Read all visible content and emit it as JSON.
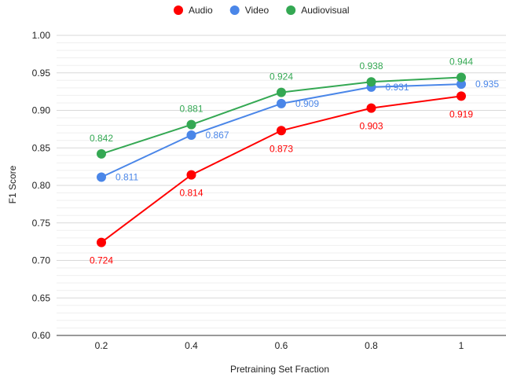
{
  "chart_data": {
    "type": "line",
    "title": "",
    "xlabel": "Pretraining Set Fraction",
    "ylabel": "F1 Score",
    "x": [
      0.2,
      0.4,
      0.6,
      0.8,
      1
    ],
    "x_tick_labels": [
      "0.2",
      "0.4",
      "0.6",
      "0.8",
      "1"
    ],
    "ylim": [
      0.6,
      1.0
    ],
    "y_ticks": [
      0.6,
      0.65,
      0.7,
      0.75,
      0.8,
      0.85,
      0.9,
      0.95,
      1.0
    ],
    "y_tick_labels": [
      "0.60",
      "0.65",
      "0.70",
      "0.75",
      "0.80",
      "0.85",
      "0.90",
      "0.95",
      "1.00"
    ],
    "grid": true,
    "minor_grid": true,
    "legend_position": "top-center",
    "series": [
      {
        "name": "Audio",
        "color": "#ff0000",
        "values": [
          0.724,
          0.814,
          0.873,
          0.903,
          0.919
        ],
        "labels": [
          "0.724",
          "0.814",
          "0.873",
          "0.903",
          "0.919"
        ],
        "label_placement": "below"
      },
      {
        "name": "Video",
        "color": "#4a86e8",
        "values": [
          0.811,
          0.867,
          0.909,
          0.931,
          0.935
        ],
        "labels": [
          "0.811",
          "0.867",
          "0.909",
          "0.931",
          "0.935"
        ],
        "label_placement": "right"
      },
      {
        "name": "Audiovisual",
        "color": "#34a853",
        "values": [
          0.842,
          0.881,
          0.924,
          0.938,
          0.944
        ],
        "labels": [
          "0.842",
          "0.881",
          "0.924",
          "0.938",
          "0.944"
        ],
        "label_placement": "above"
      }
    ]
  }
}
